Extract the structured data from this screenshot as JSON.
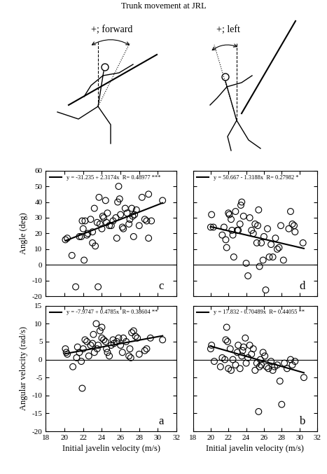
{
  "title": "Trunk movement at JRL",
  "diagrams": [
    {
      "label": "+; forward"
    },
    {
      "label": "+; left"
    }
  ],
  "chart_data": [
    {
      "type": "scatter",
      "panel_label": "c",
      "ylabel": "Angle (deg)",
      "tick_labels": "y",
      "xlim": [
        18,
        32
      ],
      "xticks": [
        18,
        20,
        22,
        24,
        26,
        28,
        30,
        32
      ],
      "ylim": [
        -20,
        60
      ],
      "yticks": [
        -20,
        -10,
        0,
        10,
        20,
        30,
        40,
        50,
        60
      ],
      "reference_line": 0,
      "legend": "upper left",
      "series": [
        {
          "type": "scatter",
          "color": "#000000",
          "marker": "o",
          "x": [
            20.1,
            20.3,
            20.8,
            21.2,
            21.6,
            21.8,
            21.9,
            22.0,
            22.1,
            22.2,
            22.4,
            22.5,
            22.8,
            23.0,
            23.0,
            23.2,
            23.3,
            23.5,
            23.6,
            23.7,
            23.8,
            24.0,
            24.1,
            24.2,
            24.4,
            24.5,
            24.6,
            24.8,
            25.0,
            25.2,
            25.5,
            25.6,
            25.7,
            25.8,
            25.9,
            26.0,
            26.2,
            26.3,
            26.5,
            26.7,
            26.9,
            27.0,
            27.2,
            27.3,
            27.4,
            27.5,
            27.7,
            28.0,
            28.3,
            28.6,
            28.8,
            29.0,
            29.0,
            29.3,
            30.5
          ],
          "values": [
            16,
            17,
            6,
            -14,
            18,
            18,
            28,
            23,
            3,
            28,
            19,
            20,
            29,
            21,
            14,
            36,
            12,
            27,
            -14,
            43,
            26,
            23,
            31,
            30,
            41,
            27,
            33,
            25,
            25,
            28,
            30,
            17,
            40,
            50,
            42,
            32,
            24,
            23,
            36,
            33,
            26,
            29,
            36,
            31,
            18,
            32,
            35,
            25,
            43,
            29,
            28,
            17,
            45,
            28,
            41
          ]
        },
        {
          "type": "line",
          "name": "y = -31.235 + 2.3174x  R= 0.48977 ***",
          "color": "#000000",
          "line_style": "solid",
          "x": [
            20.1,
            30.5
          ],
          "values": [
            15.34,
            39.45
          ]
        }
      ]
    },
    {
      "type": "scatter",
      "panel_label": "d",
      "tick_labels": false,
      "xlim": [
        18,
        32
      ],
      "xticks": [
        18,
        20,
        22,
        24,
        26,
        28,
        30,
        32
      ],
      "ylim": [
        -20,
        60
      ],
      "yticks": [
        -20,
        -10,
        0,
        10,
        20,
        30,
        40,
        50,
        60
      ],
      "reference_line": 0,
      "legend": "upper left",
      "series": [
        {
          "type": "scatter",
          "color": "#000000",
          "marker": "o",
          "x": [
            20.0,
            20.1,
            20.3,
            21.3,
            21.5,
            21.7,
            21.8,
            22.0,
            22.1,
            22.3,
            22.4,
            22.5,
            22.6,
            22.8,
            23.0,
            23.1,
            23.3,
            23.4,
            23.5,
            23.7,
            24.0,
            24.2,
            24.4,
            24.6,
            24.8,
            25.0,
            25.2,
            25.4,
            25.5,
            25.7,
            25.9,
            26.0,
            26.2,
            26.4,
            26.6,
            26.8,
            27.0,
            27.3,
            27.5,
            27.7,
            27.9,
            28.2,
            28.8,
            29.0,
            29.2,
            29.5,
            30.4,
            29.4,
            25.3
          ],
          "values": [
            24,
            32,
            24,
            19,
            24,
            16,
            11,
            33,
            32,
            29,
            22,
            19,
            5,
            34,
            22,
            22,
            26,
            38,
            40,
            31,
            1,
            -7,
            30,
            22,
            20,
            26,
            14,
            35,
            -1,
            14,
            3,
            18,
            -16,
            23,
            5,
            13,
            5,
            17,
            10,
            11,
            25,
            3,
            23,
            34,
            26,
            21,
            14,
            25,
            25
          ]
        },
        {
          "type": "line",
          "name": "y = 50.667 - 1.3188x  R= 0.27982 *",
          "color": "#000000",
          "line_style": "solid",
          "x": [
            20.0,
            30.5
          ],
          "values": [
            24.29,
            10.44
          ]
        }
      ]
    },
    {
      "type": "scatter",
      "panel_label": "a",
      "ylabel": "Angular velocity (rad/s)",
      "xlabel": "Initial javelin velocity (m/s)",
      "tick_labels": true,
      "xlim": [
        18,
        32
      ],
      "xticks": [
        18,
        20,
        22,
        24,
        26,
        28,
        30,
        32
      ],
      "ylim": [
        -20,
        15
      ],
      "yticks": [
        -20,
        -15,
        -10,
        -5,
        0,
        5,
        10,
        15
      ],
      "reference_line": 0,
      "legend": "upper left",
      "series": [
        {
          "type": "scatter",
          "color": "#000000",
          "marker": "o",
          "x": [
            20.1,
            20.2,
            20.3,
            20.9,
            21.3,
            21.4,
            21.6,
            21.8,
            21.9,
            22.0,
            22.2,
            22.4,
            22.6,
            22.8,
            23.0,
            23.1,
            23.2,
            23.4,
            23.5,
            23.6,
            23.8,
            24.0,
            24.0,
            24.2,
            24.4,
            24.5,
            24.6,
            24.8,
            25.0,
            25.2,
            25.3,
            25.6,
            25.8,
            26.0,
            26.2,
            26.3,
            26.6,
            26.9,
            27.0,
            27.2,
            27.4,
            27.6,
            27.8,
            28.0,
            28.6,
            28.8,
            29.2,
            30.5,
            27.1
          ],
          "values": [
            3,
            2,
            1.5,
            -2,
            0.5,
            3.5,
            2,
            -0.5,
            -8,
            3,
            5.5,
            5,
            1,
            4,
            4.5,
            7,
            2,
            10,
            3,
            4,
            8,
            6,
            9,
            5.5,
            5,
            3,
            2,
            1,
            4,
            5.5,
            4.5,
            5,
            6,
            4,
            2,
            6,
            5,
            1,
            3,
            7.5,
            8,
            6.5,
            6,
            1.5,
            2.5,
            3,
            6,
            5.5,
            0.5
          ]
        },
        {
          "type": "line",
          "name": "y = -7.9747 + 0.4785x  R= 0.38604 **",
          "color": "#000000",
          "line_style": "solid",
          "x": [
            20.1,
            30.5
          ],
          "values": [
            1.64,
            6.62
          ]
        }
      ]
    },
    {
      "type": "scatter",
      "panel_label": "b",
      "xlabel": "Initial javelin velocity (m/s)",
      "tick_labels": "x",
      "xlim": [
        18,
        32
      ],
      "xticks": [
        18,
        20,
        22,
        24,
        26,
        28,
        30,
        32
      ],
      "ylim": [
        -20,
        15
      ],
      "yticks": [
        -20,
        -15,
        -10,
        -5,
        0,
        5,
        10,
        15
      ],
      "reference_line": 0,
      "legend": "upper left",
      "series": [
        {
          "type": "scatter",
          "color": "#000000",
          "marker": "o",
          "x": [
            20.0,
            20.1,
            20.4,
            21.1,
            21.3,
            21.6,
            21.7,
            21.8,
            21.9,
            22.0,
            22.2,
            22.3,
            22.5,
            22.8,
            23.0,
            23.1,
            23.3,
            23.5,
            23.6,
            23.7,
            23.9,
            24.0,
            24.2,
            24.4,
            24.6,
            24.8,
            25.0,
            25.2,
            25.4,
            25.5,
            25.6,
            25.7,
            25.9,
            26.1,
            26.3,
            26.5,
            26.8,
            27.0,
            27.2,
            27.5,
            27.8,
            28.0,
            28.3,
            28.6,
            29.0,
            29.5,
            30.5,
            29.2
          ],
          "values": [
            3,
            4,
            -0.5,
            -2,
            0.5,
            0,
            5.5,
            9,
            5,
            -2.5,
            3,
            -3,
            0,
            -1.5,
            2,
            4,
            -2.5,
            1,
            2.5,
            3.5,
            6,
            -1,
            0.5,
            4,
            1.5,
            3,
            -3,
            -1,
            -14.5,
            -2,
            0,
            -1.5,
            2,
            1,
            -2,
            -2.5,
            -0.5,
            -3,
            -2,
            -1.5,
            -6,
            -12.5,
            -1,
            -2.5,
            0,
            -0.5,
            -5,
            -1.5
          ]
        },
        {
          "type": "line",
          "name": "y = 17.832 - 0.70489x  R= 0.44055 **",
          "color": "#000000",
          "line_style": "solid",
          "x": [
            20.0,
            30.5
          ],
          "values": [
            3.73,
            -3.67
          ]
        }
      ]
    }
  ]
}
